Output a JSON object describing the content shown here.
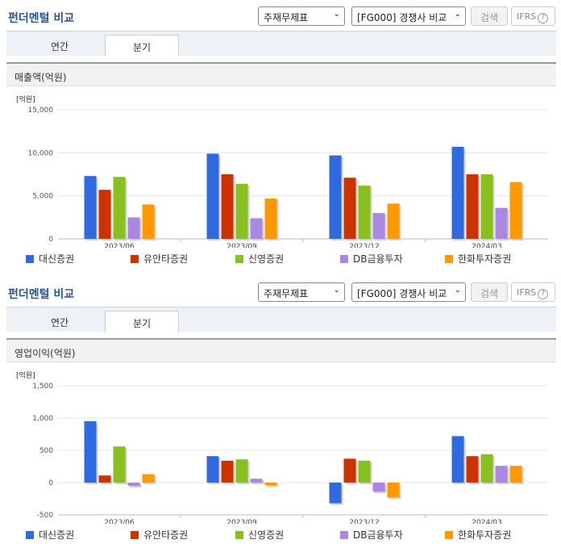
{
  "panels": [
    {
      "title": "펀더멘털 비교",
      "select1": "주재무제표",
      "select2": "[FG000] 경쟁사 비교",
      "search": "검색",
      "ifrs": "IFRS",
      "tabs": [
        "연간",
        "분기"
      ],
      "subtitle": "매출액(억원)",
      "unit": "[억원]"
    },
    {
      "title": "펀더멘털 비교",
      "select1": "주재무제표",
      "select2": "[FG000] 경쟁사 비교",
      "search": "검색",
      "ifrs": "IFRS",
      "tabs": [
        "연간",
        "분기"
      ],
      "subtitle": "영업이익(억원)",
      "unit": "[억원]"
    }
  ],
  "colors": [
    "#2f6bde",
    "#cc3300",
    "#88c020",
    "#a888e0",
    "#ff9900"
  ],
  "chart_data": [
    {
      "type": "bar",
      "categories": [
        "2023/06",
        "2023/09",
        "2023/12",
        "2024/03"
      ],
      "ylim": [
        0,
        15000
      ],
      "yticks": [
        "0",
        "5,000",
        "10,000",
        "15,000"
      ],
      "ytick_values": [
        0,
        5000,
        10000,
        15000
      ],
      "series": [
        {
          "name": "대신증권",
          "values": [
            7300,
            9900,
            9700,
            10700
          ]
        },
        {
          "name": "유안타증권",
          "values": [
            5700,
            7500,
            7100,
            7500
          ]
        },
        {
          "name": "신영증권",
          "values": [
            7200,
            6400,
            6200,
            7500
          ]
        },
        {
          "name": "DB금융투자",
          "values": [
            2500,
            2400,
            3000,
            3600
          ]
        },
        {
          "name": "한화투자증권",
          "values": [
            4000,
            4700,
            4100,
            6600
          ]
        }
      ]
    },
    {
      "type": "bar",
      "categories": [
        "2023/06",
        "2023/09",
        "2023/12",
        "2024/03"
      ],
      "ylim": [
        -500,
        1500
      ],
      "yticks": [
        "-500",
        "0",
        "500",
        "1,000",
        "1,500"
      ],
      "ytick_values": [
        -500,
        0,
        500,
        1000,
        1500
      ],
      "series": [
        {
          "name": "대신증권",
          "values": [
            950,
            410,
            -320,
            720
          ]
        },
        {
          "name": "유안타증권",
          "values": [
            110,
            340,
            370,
            410
          ]
        },
        {
          "name": "신영증권",
          "values": [
            560,
            360,
            340,
            440
          ]
        },
        {
          "name": "DB금융투자",
          "values": [
            -50,
            60,
            -140,
            260
          ]
        },
        {
          "name": "한화투자증권",
          "values": [
            130,
            -40,
            -230,
            260
          ]
        }
      ]
    }
  ]
}
